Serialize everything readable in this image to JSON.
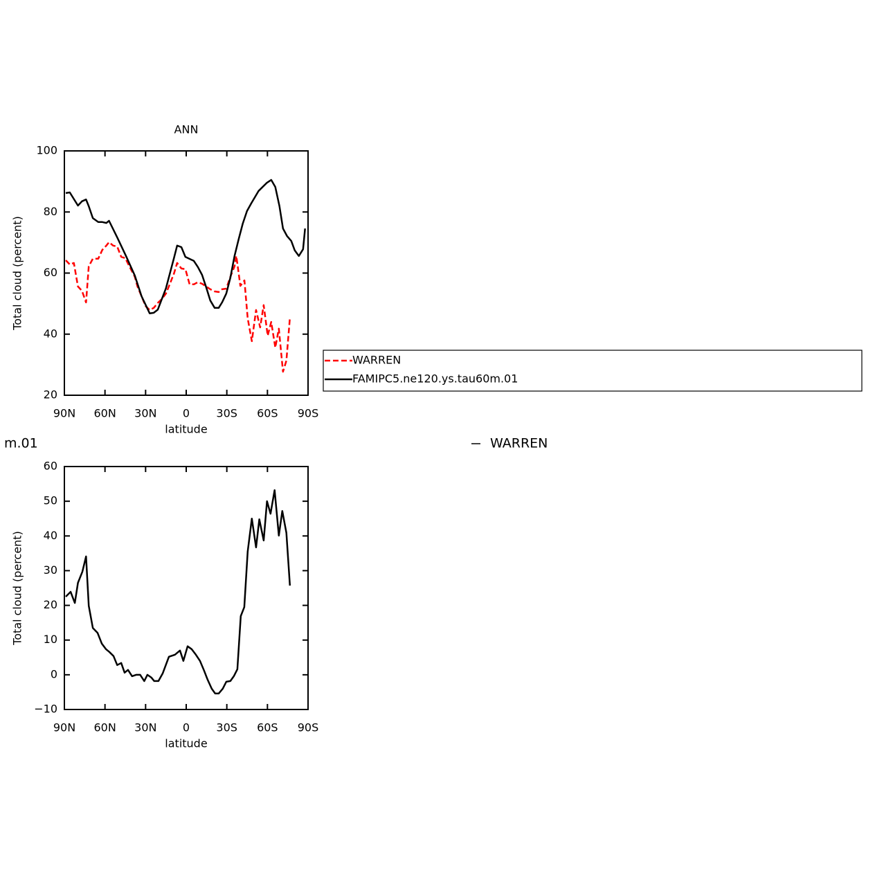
{
  "chart_data": [
    {
      "type": "line",
      "title": "ANN",
      "x_label": "latitude",
      "y_label": "Total cloud (percent)",
      "xlim": [
        90,
        -90
      ],
      "xticks": [
        {
          "value": 90,
          "label": "90N"
        },
        {
          "value": 60,
          "label": "60N"
        },
        {
          "value": 30,
          "label": "30N"
        },
        0,
        {
          "value": -30,
          "label": "30S"
        },
        {
          "value": -60,
          "label": "60S"
        },
        {
          "value": -90,
          "label": "90S"
        }
      ],
      "ylim": [
        20,
        100
      ],
      "yticks": [
        20,
        40,
        60,
        80,
        100
      ],
      "legend": "right",
      "series": [
        {
          "name": "WARREN",
          "color": "#ff0000",
          "dashed": true,
          "x": [
            89,
            86,
            83,
            80,
            77,
            74,
            72,
            69,
            65,
            62,
            59,
            57,
            54,
            51,
            48,
            45,
            42,
            38,
            36,
            33,
            30,
            27,
            24,
            21,
            18,
            15,
            12,
            9,
            6.7,
            3.6,
            0.6,
            -2.5,
            -5.6,
            -8.6,
            -11.7,
            -14.8,
            -17.8,
            -21,
            -24,
            -26.5,
            -29.6,
            -32.6,
            -35.7,
            -37,
            -40,
            -43,
            -45.4,
            -48.5,
            -51.6,
            -54.6,
            -57.2,
            -60.2,
            -62.8,
            -65.8,
            -68.4,
            -71.5,
            -74,
            -76.6
          ],
          "values": [
            64.2,
            62.8,
            63.3,
            55.6,
            54.2,
            50.4,
            62.2,
            64.7,
            64.7,
            67.6,
            69,
            70.1,
            69,
            68.7,
            65.3,
            64.9,
            62.2,
            58.8,
            55.6,
            52.4,
            49.2,
            47.9,
            48.6,
            50.2,
            51.5,
            53.3,
            56.5,
            59.9,
            63.3,
            61.5,
            61.3,
            56.3,
            56.3,
            57,
            56.5,
            55.6,
            54.7,
            54,
            53.8,
            54.7,
            54.9,
            58.8,
            62.2,
            65.6,
            55.8,
            57.6,
            45.2,
            37.7,
            47.9,
            42.2,
            49.5,
            39.5,
            44,
            35.6,
            41.8,
            27.7,
            31.3,
            45.4
          ]
        },
        {
          "name": "FAMIPC5.ne120.ys.tau60m.01",
          "color": "#000000",
          "dashed": false,
          "x": [
            89,
            86,
            80,
            77,
            74,
            72,
            69,
            65,
            62,
            59,
            57,
            51,
            44.5,
            38,
            33,
            27,
            24,
            21,
            15,
            9,
            6.7,
            3.6,
            0.6,
            -5.6,
            -8.6,
            -11.7,
            -14.8,
            -17.8,
            -21,
            -24,
            -26.5,
            -29.6,
            -32.6,
            -35.7,
            -38.8,
            -41.8,
            -44.9,
            -48,
            -53.5,
            -59.7,
            -62.8,
            -65.8,
            -68.9,
            -71.5,
            -74.5,
            -77.6,
            -80.2,
            -83.2,
            -86.3,
            -87.8
          ],
          "values": [
            86.2,
            86.4,
            82.1,
            83.5,
            84.1,
            81.9,
            78,
            76.7,
            76.7,
            76.4,
            77.1,
            71.7,
            65.6,
            59.2,
            52.4,
            46.8,
            47,
            48,
            55,
            65,
            69,
            68.5,
            65.3,
            64,
            62,
            59.4,
            55.3,
            51,
            48.6,
            48.6,
            50.4,
            53.3,
            58.5,
            65.6,
            71.2,
            76.2,
            80.3,
            82.8,
            86.9,
            89.6,
            90.5,
            88.2,
            81.9,
            74.6,
            72.1,
            70.5,
            67.4,
            65.6,
            67.8,
            74.6
          ]
        }
      ]
    },
    {
      "type": "line",
      "x_label": "latitude",
      "y_label": "Total cloud (percent)",
      "annotations": [
        "m.01",
        "WARREN"
      ],
      "xlim": [
        90,
        -90
      ],
      "xticks": [
        {
          "value": 90,
          "label": "90N"
        },
        {
          "value": 60,
          "label": "60N"
        },
        {
          "value": 30,
          "label": "30N"
        },
        0,
        {
          "value": -30,
          "label": "30S"
        },
        {
          "value": -60,
          "label": "60S"
        },
        {
          "value": -90,
          "label": "90S"
        }
      ],
      "ylim": [
        -10,
        60
      ],
      "yticks": [
        {
          "value": -10,
          "label": "−10"
        },
        0,
        10,
        20,
        30,
        40,
        50,
        60
      ],
      "series": [
        {
          "color": "#000000",
          "dashed": false,
          "x": [
            89,
            85.4,
            82.3,
            80,
            76.7,
            74,
            72,
            69,
            65.5,
            62.4,
            59.3,
            56.8,
            53.7,
            51,
            48,
            45.5,
            43,
            40,
            37,
            34,
            31,
            28.7,
            25.7,
            23.6,
            20.5,
            17.4,
            12.8,
            8.3,
            4.6,
            2.1,
            -1,
            -4,
            -7.1,
            -10.2,
            -13.2,
            -15.8,
            -18.8,
            -21.4,
            -24,
            -27,
            -29.6,
            -32.6,
            -35.2,
            -37.8,
            -40.3,
            -42.9,
            -45.4,
            -48.5,
            -51.6,
            -54,
            -57.2,
            -59.7,
            -62.3,
            -65.3,
            -68.4,
            -71,
            -74,
            -76.6
          ],
          "values": [
            22.5,
            23.9,
            20.7,
            26.5,
            29.7,
            34.1,
            19.9,
            13.5,
            12.1,
            9,
            7.4,
            6.6,
            5.4,
            2.8,
            3.4,
            0.6,
            1.4,
            -0.4,
            0,
            0,
            -1.8,
            0,
            -0.8,
            -1.8,
            -1.8,
            0.4,
            5.2,
            5.8,
            7,
            4,
            8.2,
            7.4,
            5.8,
            4,
            1.2,
            -1.4,
            -4,
            -5.4,
            -5.4,
            -4,
            -2,
            -1.8,
            -0.4,
            1.6,
            16.9,
            19.5,
            35.5,
            45,
            36.7,
            44.8,
            38.7,
            50,
            46.4,
            53.2,
            40.1,
            47.2,
            40.9,
            25.7
          ]
        }
      ]
    }
  ]
}
